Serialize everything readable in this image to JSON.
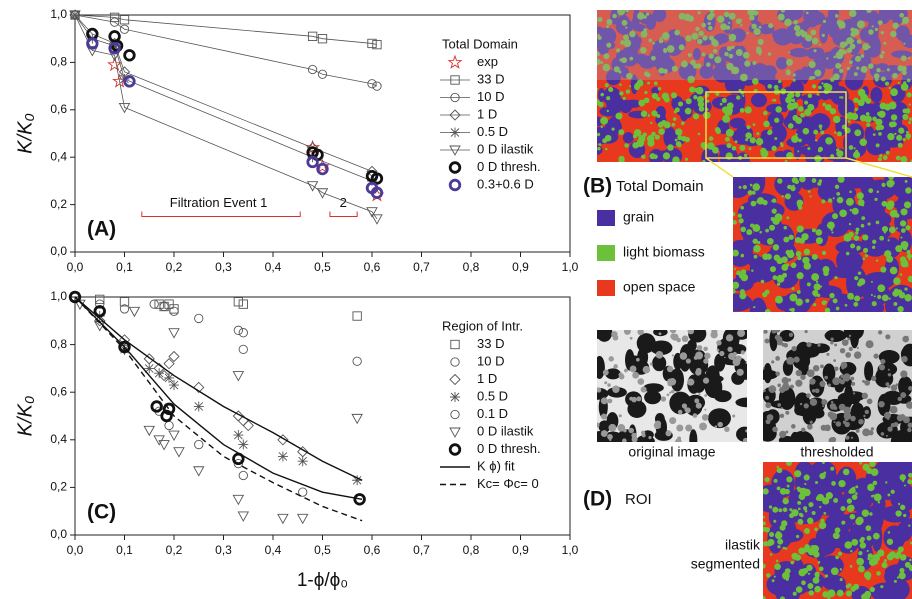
{
  "chart_data": [
    {
      "type": "scatter",
      "legend_title": "Total Domain",
      "annotations": [
        "(A)",
        "Filtration Event 1",
        "2"
      ],
      "xlim": [
        0,
        1
      ],
      "ylim": [
        0,
        1
      ],
      "xticks": [
        {
          "value": 0,
          "label": "0,0"
        },
        {
          "value": 0.1,
          "label": "0,1"
        },
        {
          "value": 0.2,
          "label": "0,2"
        },
        {
          "value": 0.3,
          "label": "0,3"
        },
        {
          "value": 0.4,
          "label": "0,4"
        },
        {
          "value": 0.5,
          "label": "0,5"
        },
        {
          "value": 0.6,
          "label": "0,6"
        },
        {
          "value": 0.7,
          "label": "0,7"
        },
        {
          "value": 0.8,
          "label": "0,8"
        },
        {
          "value": 0.9,
          "label": "0,9"
        },
        {
          "value": 1,
          "label": "1,0"
        }
      ],
      "yticks": [
        {
          "value": 0,
          "label": "0,0"
        },
        {
          "value": 0.2,
          "label": "0,2"
        },
        {
          "value": 0.4,
          "label": "0,4"
        },
        {
          "value": 0.6,
          "label": "0,6"
        },
        {
          "value": 0.8,
          "label": "0,8"
        },
        {
          "value": 1,
          "label": "1,0"
        }
      ],
      "ylabel": "K/K₀",
      "series": [
        {
          "name": "exp",
          "color": "#d9302a",
          "marker": "star",
          "line": false,
          "x": [
            0.08,
            0.09,
            0.48,
            0.5,
            0.61
          ],
          "values": [
            0.79,
            0.72,
            0.44,
            0.36,
            0.24
          ]
        },
        {
          "name": "33 D",
          "color": "#555555",
          "marker": "square",
          "line": true,
          "x": [
            0,
            0.08,
            0.1,
            0.48,
            0.5,
            0.6,
            0.61
          ],
          "values": [
            1.0,
            0.99,
            0.98,
            0.91,
            0.9,
            0.88,
            0.875
          ]
        },
        {
          "name": "10 D",
          "color": "#555555",
          "marker": "circle",
          "line": true,
          "x": [
            0,
            0.08,
            0.1,
            0.48,
            0.5,
            0.6,
            0.61
          ],
          "values": [
            1.0,
            0.97,
            0.94,
            0.77,
            0.75,
            0.71,
            0.7
          ]
        },
        {
          "name": "1   D",
          "color": "#555555",
          "marker": "diamond",
          "line": true,
          "x": [
            0,
            0.035,
            0.08,
            0.1,
            0.48,
            0.6
          ],
          "values": [
            1.0,
            0.92,
            0.88,
            0.76,
            0.44,
            0.34
          ]
        },
        {
          "name": "0.5 D",
          "color": "#555555",
          "marker": "asterisk",
          "line": true,
          "x": [
            0,
            0.035,
            0.08,
            0.1,
            0.48,
            0.6
          ],
          "values": [
            1.0,
            0.9,
            0.87,
            0.73,
            0.4,
            0.3
          ]
        },
        {
          "name": "0 D ilastik",
          "color": "#555555",
          "marker": "triangle",
          "line": true,
          "x": [
            0,
            0.035,
            0.08,
            0.1,
            0.48,
            0.5,
            0.6,
            0.61
          ],
          "values": [
            1.0,
            0.85,
            0.83,
            0.61,
            0.28,
            0.25,
            0.17,
            0.14
          ]
        },
        {
          "name": "0 D thresh.",
          "color": "#111111",
          "marker": "bold-circle",
          "line": false,
          "x": [
            0.035,
            0.08,
            0.085,
            0.11,
            0.48,
            0.49,
            0.6,
            0.61
          ],
          "values": [
            0.92,
            0.91,
            0.87,
            0.83,
            0.42,
            0.41,
            0.32,
            0.31
          ]
        },
        {
          "name": "0.3+0.6 D",
          "color": "#4b3a9a",
          "marker": "bold-circle",
          "line": false,
          "x": [
            0.035,
            0.08,
            0.11,
            0.48,
            0.5,
            0.6,
            0.61
          ],
          "values": [
            0.88,
            0.86,
            0.72,
            0.38,
            0.35,
            0.27,
            0.25
          ]
        }
      ]
    },
    {
      "type": "scatter",
      "legend_title": "Region of Intr.",
      "annotations": [
        "(C)"
      ],
      "xlim": [
        0,
        1
      ],
      "ylim": [
        0,
        1
      ],
      "xticks": [
        {
          "value": 0,
          "label": "0,0"
        },
        {
          "value": 0.1,
          "label": "0,1"
        },
        {
          "value": 0.2,
          "label": "0,2"
        },
        {
          "value": 0.3,
          "label": "0,3"
        },
        {
          "value": 0.4,
          "label": "0,4"
        },
        {
          "value": 0.5,
          "label": "0,5"
        },
        {
          "value": 0.6,
          "label": "0,6"
        },
        {
          "value": 0.7,
          "label": "0,7"
        },
        {
          "value": 0.8,
          "label": "0,8"
        },
        {
          "value": 0.9,
          "label": "0,9"
        },
        {
          "value": 1,
          "label": "1,0"
        }
      ],
      "yticks": [
        {
          "value": 0,
          "label": "0,0"
        },
        {
          "value": 0.2,
          "label": "0,2"
        },
        {
          "value": 0.4,
          "label": "0,4"
        },
        {
          "value": 0.6,
          "label": "0,6"
        },
        {
          "value": 0.8,
          "label": "0,8"
        },
        {
          "value": 1,
          "label": "1,0"
        }
      ],
      "ylabel": "K/K₀",
      "xlabel": "1-ϕ/ϕ₀",
      "series": [
        {
          "name": "33 D",
          "color": "#555555",
          "marker": "square",
          "line": false,
          "x": [
            0,
            0.05,
            0.1,
            0.17,
            0.18,
            0.19,
            0.2,
            0.33,
            0.34,
            0.57
          ],
          "values": [
            1.0,
            0.99,
            0.98,
            0.97,
            0.96,
            0.97,
            0.95,
            0.98,
            0.97,
            0.92
          ]
        },
        {
          "name": "10 D",
          "color": "#555555",
          "marker": "circle",
          "line": false,
          "x": [
            0.05,
            0.1,
            0.16,
            0.18,
            0.2,
            0.25,
            0.33,
            0.34,
            0.34,
            0.57
          ],
          "values": [
            0.97,
            0.95,
            0.97,
            0.96,
            0.94,
            0.91,
            0.86,
            0.85,
            0.78,
            0.73
          ]
        },
        {
          "name": "1 D",
          "color": "#555555",
          "marker": "diamond",
          "line": false,
          "x": [
            0.05,
            0.1,
            0.15,
            0.17,
            0.18,
            0.19,
            0.2,
            0.25,
            0.33,
            0.34,
            0.35,
            0.42,
            0.46
          ],
          "values": [
            0.9,
            0.82,
            0.74,
            0.7,
            0.67,
            0.72,
            0.75,
            0.62,
            0.5,
            0.48,
            0.46,
            0.4,
            0.35
          ]
        },
        {
          "name": "0.5 D",
          "color": "#555555",
          "marker": "asterisk",
          "line": false,
          "x": [
            0.05,
            0.1,
            0.15,
            0.17,
            0.19,
            0.2,
            0.25,
            0.33,
            0.34,
            0.42,
            0.46,
            0.57
          ],
          "values": [
            0.92,
            0.78,
            0.7,
            0.68,
            0.66,
            0.63,
            0.54,
            0.42,
            0.38,
            0.33,
            0.31,
            0.23
          ]
        },
        {
          "name": "0.1 D",
          "color": "#555555",
          "marker": "circle",
          "line": false,
          "x": [
            0.17,
            0.19,
            0.25,
            0.33,
            0.34,
            0.46
          ],
          "values": [
            0.52,
            0.46,
            0.38,
            0.3,
            0.25,
            0.18
          ]
        },
        {
          "name": "0 D ilastik",
          "color": "#555555",
          "marker": "triangle",
          "line": false,
          "x": [
            0.01,
            0.05,
            0.1,
            0.15,
            0.17,
            0.18,
            0.2,
            0.21,
            0.25,
            0.33,
            0.34,
            0.42,
            0.46,
            0.57,
            0.12,
            0.2,
            0.33
          ],
          "values": [
            0.97,
            0.88,
            0.78,
            0.44,
            0.4,
            0.38,
            0.42,
            0.35,
            0.27,
            0.15,
            0.08,
            0.07,
            0.07,
            0.49,
            0.94,
            0.85,
            0.67
          ]
        },
        {
          "name": "0 D thresh.",
          "color": "#111111",
          "marker": "bold-circle",
          "line": false,
          "x": [
            0,
            0.05,
            0.1,
            0.165,
            0.185,
            0.19,
            0.33,
            0.575
          ],
          "values": [
            1.0,
            0.94,
            0.79,
            0.54,
            0.5,
            0.53,
            0.32,
            0.15
          ]
        },
        {
          "name": "K ϕ) fit",
          "color": "#111111",
          "marker": "none",
          "line": true,
          "x": [
            0,
            0.1,
            0.2,
            0.3,
            0.4,
            0.5,
            0.58
          ],
          "values": [
            1.0,
            0.82,
            0.67,
            0.54,
            0.43,
            0.31,
            0.23
          ]
        },
        {
          "color": "#111111",
          "marker": "none",
          "line": true,
          "x": [
            0,
            0.1,
            0.2,
            0.3,
            0.4,
            0.5,
            0.58
          ],
          "values": [
            1.0,
            0.79,
            0.55,
            0.38,
            0.26,
            0.18,
            0.15
          ]
        },
        {
          "name": "Kc= Φc= 0",
          "color": "#111111",
          "marker": "none",
          "line": true,
          "dash": true,
          "x": [
            0,
            0.1,
            0.2,
            0.3,
            0.4,
            0.5,
            0.58
          ],
          "values": [
            1.0,
            0.78,
            0.5,
            0.33,
            0.22,
            0.12,
            0.06
          ]
        }
      ]
    }
  ],
  "panels": {
    "b_label": "(B)",
    "b_title": "Total Domain",
    "b_legend": [
      "grain",
      "light biomass",
      "open space"
    ],
    "b_colors": [
      "#4a2fa0",
      "#6cc03a",
      "#e8391e"
    ],
    "d_label": "(D)",
    "d_title": "ROI",
    "d_captions": [
      "original image",
      "thresholded"
    ],
    "d_segmented": [
      "ilastik",
      "segmented"
    ]
  }
}
